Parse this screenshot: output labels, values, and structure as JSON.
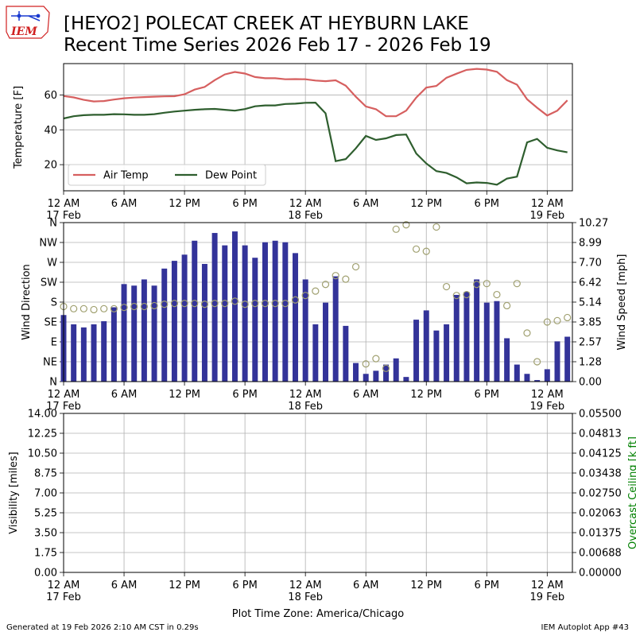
{
  "header": {
    "logo_text": "IEM",
    "title_line1": "[HEYO2] POLECAT CREEK  AT HEYBURN LAKE",
    "title_line2": "Recent Time Series 2026 Feb 17 - 2026 Feb 19"
  },
  "footer": {
    "generated": "Generated at 19 Feb 2026 2:10 AM CST in 0.29s",
    "app": "IEM Autoplot App #43"
  },
  "colors": {
    "air_temp": "#d65f5f",
    "dew_point": "#2e5e2e",
    "wind_speed_bar": "#333399",
    "wind_dir_marker": "#a0a070",
    "ceiling_axis": "#008000",
    "grid": "#b0b0b0"
  },
  "chart_data": [
    {
      "type": "line",
      "ylabel": "Temperature [F]",
      "xlim": [
        0,
        50.5
      ],
      "ylim": [
        5,
        78
      ],
      "grid": true,
      "legend_placement": "lower-left",
      "x_tick_values": [
        0,
        6,
        12,
        18,
        24,
        30,
        36,
        42,
        48
      ],
      "x_tick_labels": [
        "12 AM\n17 Feb",
        "6 AM",
        "12 PM",
        "6 PM",
        "12 AM\n18 Feb",
        "6 AM",
        "12 PM",
        "6 PM",
        "12 AM\n19 Feb"
      ],
      "y_ticks": [
        20,
        40,
        60
      ],
      "series": [
        {
          "name": "Air Temp",
          "x": [
            0,
            1,
            2,
            3,
            4,
            5,
            6,
            7,
            8,
            9,
            10,
            11,
            12,
            13,
            14,
            15,
            16,
            17,
            18,
            19,
            20,
            21,
            22,
            23,
            24,
            25,
            26,
            27,
            28,
            29,
            30,
            31,
            32,
            33,
            34,
            35,
            36,
            37,
            38,
            39,
            40,
            41,
            42,
            43,
            44,
            45,
            46,
            47,
            48,
            49,
            50
          ],
          "values": [
            59.4,
            58.6,
            57.2,
            56.3,
            56.5,
            57.4,
            58.1,
            58.5,
            58.8,
            59.0,
            59.2,
            59.3,
            60.4,
            63.1,
            64.6,
            68.5,
            71.8,
            73.2,
            72.3,
            70.3,
            69.6,
            69.6,
            69.0,
            69.1,
            69.0,
            68.3,
            67.9,
            68.4,
            65.3,
            59.0,
            53.4,
            51.8,
            47.8,
            47.8,
            51.0,
            58.5,
            64.2,
            65.2,
            69.9,
            72.2,
            74.4,
            75.0,
            74.6,
            73.3,
            68.5,
            65.9,
            57.5,
            52.7,
            48.2,
            51.0,
            56.9
          ]
        },
        {
          "name": "Dew Point",
          "x": [
            0,
            1,
            2,
            3,
            4,
            5,
            6,
            7,
            8,
            9,
            10,
            11,
            12,
            13,
            14,
            15,
            16,
            17,
            18,
            19,
            20,
            21,
            22,
            23,
            24,
            25,
            26,
            27,
            28,
            29,
            30,
            31,
            32,
            33,
            34,
            35,
            36,
            37,
            38,
            39,
            40,
            41,
            42,
            43,
            44,
            45,
            46,
            47,
            48,
            49,
            50
          ],
          "values": [
            46.5,
            47.8,
            48.4,
            48.6,
            48.6,
            49.0,
            48.9,
            48.6,
            48.6,
            49.0,
            49.8,
            50.5,
            51.0,
            51.5,
            51.8,
            52.0,
            51.5,
            51.0,
            51.9,
            53.5,
            54.0,
            54.0,
            54.8,
            55.0,
            55.5,
            55.6,
            49.5,
            22.0,
            23.2,
            29.3,
            36.5,
            34.2,
            35.1,
            37.0,
            37.3,
            26.4,
            20.7,
            16.3,
            15.2,
            12.7,
            9.3,
            9.8,
            9.5,
            8.5,
            12.0,
            13.1,
            32.8,
            34.8,
            29.7,
            28.2,
            27.1
          ]
        }
      ]
    },
    {
      "type": "bar",
      "ylabel": "Wind Direction",
      "y2label": "Wind Speed [mph]",
      "xlim": [
        0,
        50.5
      ],
      "grid": true,
      "direction_tick_labels": [
        "N",
        "NE",
        "E",
        "SE",
        "S",
        "SW",
        "W",
        "NW",
        "N"
      ],
      "direction_tick_values": [
        0,
        45,
        90,
        135,
        180,
        225,
        270,
        315,
        360
      ],
      "speed_tick_labels": [
        "0.00",
        "1.28",
        "2.57",
        "3.85",
        "5.14",
        "6.42",
        "7.70",
        "8.99",
        "10.27"
      ],
      "speed_ylim": [
        0,
        10.27
      ],
      "x_tick_values": [
        0,
        6,
        12,
        18,
        24,
        30,
        36,
        42,
        48
      ],
      "x_tick_labels": [
        "12 AM\n17 Feb",
        "6 AM",
        "12 PM",
        "6 PM",
        "12 AM\n18 Feb",
        "6 AM",
        "12 PM",
        "6 PM",
        "12 AM\n19 Feb"
      ],
      "series": [
        {
          "name": "Wind Speed",
          "x": [
            0,
            1,
            2,
            3,
            4,
            5,
            6,
            7,
            8,
            9,
            10,
            11,
            12,
            13,
            14,
            15,
            16,
            17,
            18,
            19,
            20,
            21,
            22,
            23,
            24,
            25,
            26,
            27,
            28,
            29,
            30,
            31,
            32,
            33,
            34,
            35,
            36,
            37,
            38,
            39,
            40,
            41,
            42,
            43,
            44,
            45,
            46,
            47,
            48,
            49,
            50
          ],
          "values": [
            4.3,
            3.7,
            3.5,
            3.7,
            3.9,
            4.8,
            6.3,
            6.2,
            6.6,
            6.2,
            7.3,
            7.8,
            8.2,
            9.1,
            7.6,
            9.6,
            8.8,
            9.7,
            8.8,
            8.0,
            9.0,
            9.1,
            9.0,
            8.3,
            6.6,
            3.7,
            5.1,
            6.8,
            3.6,
            1.2,
            0.5,
            0.7,
            1.1,
            1.5,
            0.3,
            4.0,
            4.6,
            3.3,
            3.7,
            5.6,
            5.8,
            6.6,
            5.1,
            5.2,
            2.8,
            1.1,
            0.5,
            0.1,
            0.8,
            2.6,
            2.9
          ]
        },
        {
          "name": "Wind Direction",
          "x": [
            0,
            1,
            2,
            3,
            4,
            5,
            6,
            7,
            8,
            9,
            10,
            11,
            12,
            13,
            14,
            15,
            16,
            17,
            18,
            19,
            20,
            21,
            22,
            23,
            24,
            25,
            26,
            27,
            28,
            29,
            30,
            31,
            32,
            33,
            34,
            35,
            36,
            37,
            38,
            39,
            40,
            41,
            42,
            43,
            44,
            45,
            46,
            47,
            48,
            49,
            50
          ],
          "values": [
            170,
            165,
            165,
            163,
            165,
            165,
            168,
            170,
            170,
            172,
            175,
            177,
            177,
            177,
            175,
            177,
            177,
            182,
            175,
            177,
            177,
            177,
            177,
            185,
            195,
            205,
            220,
            240,
            232,
            260,
            40,
            52,
            30,
            345,
            355,
            300,
            295,
            350,
            215,
            195,
            197,
            220,
            222,
            197,
            172,
            222,
            110,
            45,
            135,
            138,
            145
          ]
        }
      ]
    },
    {
      "type": "line",
      "ylabel": "Visibility [miles]",
      "y2label": "Overcast Ceiling [k ft]",
      "xlim": [
        0,
        50.5
      ],
      "ylim": [
        0,
        14
      ],
      "y2lim": [
        0,
        0.055
      ],
      "grid": true,
      "visibility_tick_labels": [
        "0.00",
        "1.75",
        "3.50",
        "5.25",
        "7.00",
        "8.75",
        "10.50",
        "12.25",
        "14.00"
      ],
      "ceiling_tick_labels": [
        "0.00000",
        "0.00688",
        "0.01375",
        "0.02063",
        "0.02750",
        "0.03438",
        "0.04125",
        "0.04813",
        "0.05500"
      ],
      "x_tick_values": [
        0,
        6,
        12,
        18,
        24,
        30,
        36,
        42,
        48
      ],
      "x_tick_labels": [
        "12 AM\n17 Feb",
        "6 AM",
        "12 PM",
        "6 PM",
        "12 AM\n18 Feb",
        "6 AM",
        "12 PM",
        "6 PM",
        "12 AM\n19 Feb"
      ],
      "xlabel": "Plot Time Zone: America/Chicago",
      "series": []
    }
  ]
}
